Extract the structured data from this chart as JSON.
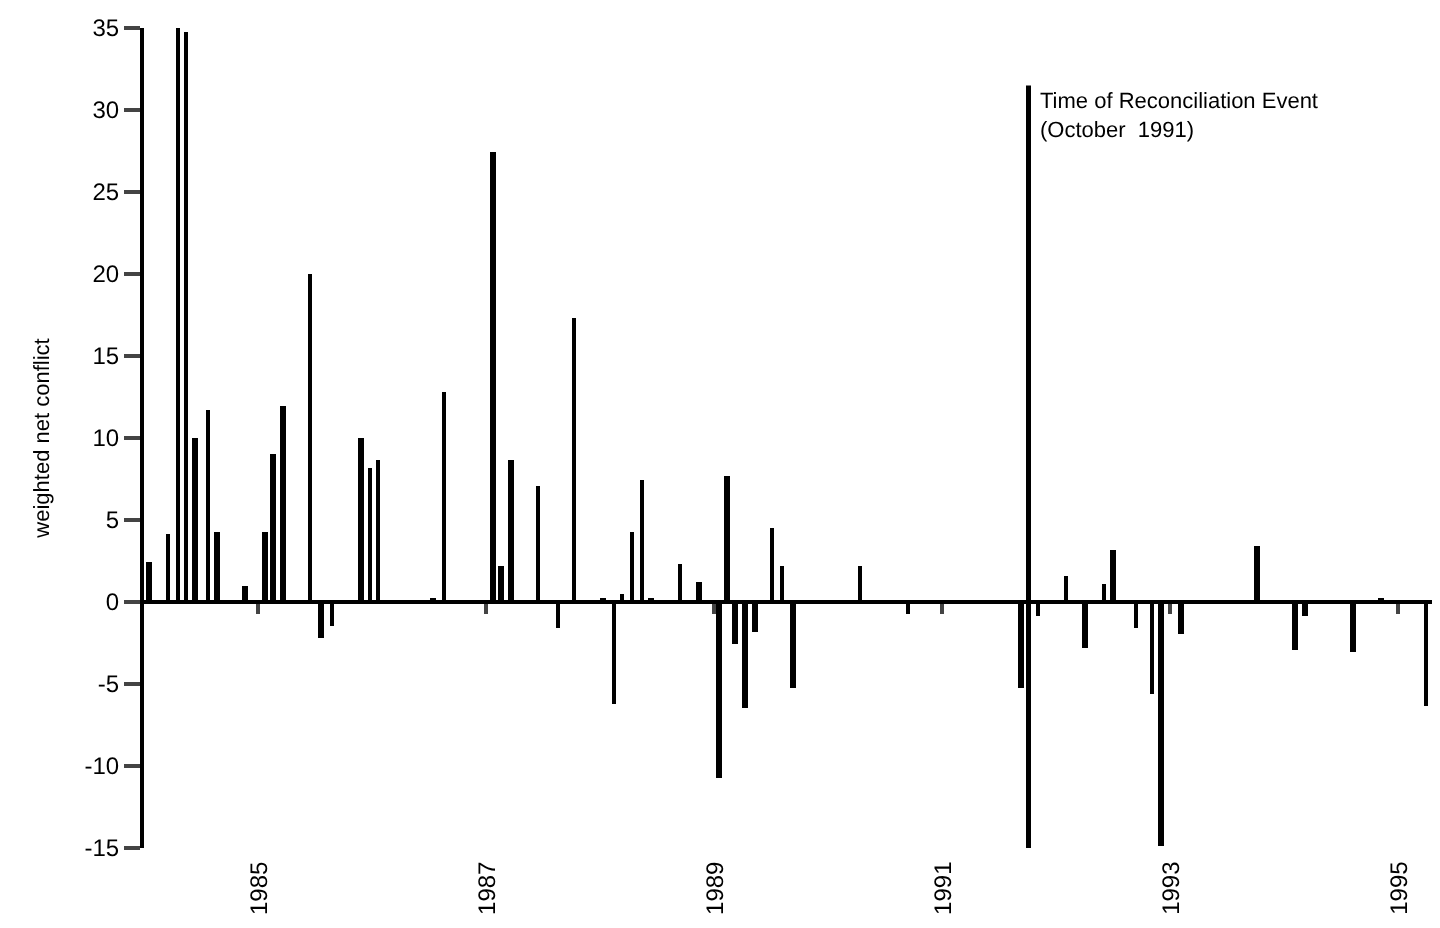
{
  "chart_data": {
    "type": "bar",
    "ylabel": "weighted net conflict",
    "x": [
      1984.04,
      1984.21,
      1984.3,
      1984.37,
      1984.45,
      1984.56,
      1984.64,
      1984.89,
      1985.06,
      1985.13,
      1985.22,
      1985.46,
      1985.55,
      1985.65,
      1985.9,
      1985.98,
      1986.05,
      1986.54,
      1986.63,
      1987.06,
      1987.13,
      1987.22,
      1987.46,
      1987.63,
      1987.77,
      1988.03,
      1988.12,
      1988.19,
      1988.28,
      1988.37,
      1988.45,
      1988.7,
      1988.87,
      1989.04,
      1989.11,
      1989.18,
      1989.27,
      1989.36,
      1989.51,
      1989.6,
      1989.69,
      1990.28,
      1990.7,
      1991.69,
      1991.84,
      1992.09,
      1992.26,
      1992.42,
      1992.5,
      1992.7,
      1992.84,
      1992.92,
      1993.1,
      1993.76,
      1994.1,
      1994.19,
      1994.61,
      1994.85,
      1995.25
    ],
    "values": [
      2.5,
      4.2,
      35,
      34.7,
      10,
      11.7,
      4.3,
      1,
      4.3,
      9,
      12,
      20,
      -2.2,
      -1.5,
      10,
      8.2,
      8.6,
      0.3,
      12.8,
      27.4,
      2.2,
      8.7,
      7.1,
      -1.6,
      17.3,
      0.3,
      -6.2,
      0.5,
      4.3,
      7.5,
      0.3,
      2.3,
      1.2,
      -10.7,
      7.7,
      -2.6,
      -6.5,
      -1.8,
      4.5,
      2.2,
      -5.3,
      2.2,
      -0.7,
      -5.3,
      -0.8,
      1.6,
      -2.8,
      1.1,
      3.2,
      -1.6,
      -5.6,
      -14.9,
      -1.9,
      3.4,
      -2.9,
      -0.8,
      -3,
      0.3,
      -6.3
    ],
    "color": "#000000",
    "xlim": [
      1984.0,
      1995.3
    ],
    "xticks": [
      1985,
      1987,
      1989,
      1991,
      1993,
      1995
    ],
    "ylim": [
      -15,
      35
    ],
    "yticks": [
      -15,
      -10,
      -5,
      0,
      5,
      10,
      15,
      20,
      25,
      30,
      35
    ],
    "ref_lines": [
      {
        "axis": "x",
        "value": 1991.76,
        "label": "Time of Reconciliation Event\n(October  1991)",
        "color": "#000000"
      }
    ]
  }
}
